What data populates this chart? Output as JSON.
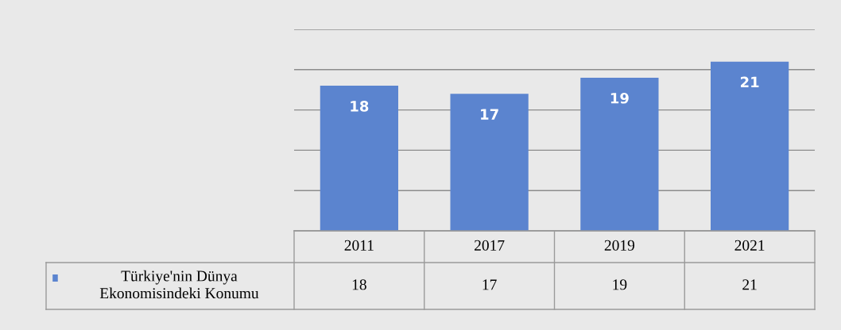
{
  "chart_data": {
    "type": "bar",
    "categories": [
      "2011",
      "2017",
      "2019",
      "2021"
    ],
    "series": [
      {
        "name": "Türkiye'nin Dünya Ekonomisindeki Konumu",
        "color": "#5b84cf",
        "values": [
          18,
          17,
          19,
          21
        ],
        "value_labels": [
          "18",
          "17",
          "19",
          "21"
        ]
      }
    ],
    "ylim": [
      0,
      25
    ],
    "yticks": [
      {
        "value": 0,
        "label": null
      },
      {
        "value": 5,
        "label": null
      },
      {
        "value": 10,
        "label": null
      },
      {
        "value": 15,
        "label": null
      },
      {
        "value": 20,
        "label": null
      },
      {
        "value": 25,
        "label": null
      }
    ],
    "annotations": [
      "18",
      "17",
      "19",
      "21"
    ],
    "grid": "y",
    "legend": "bottom left",
    "tick_labels": false
  }
}
